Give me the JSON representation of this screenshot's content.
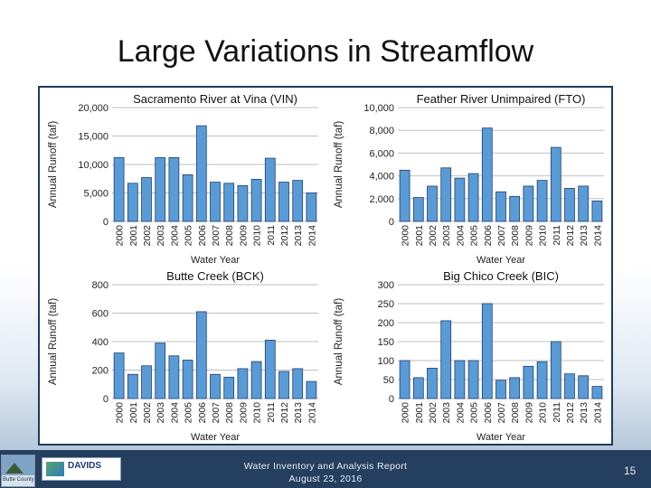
{
  "slide": {
    "title": "Large Variations in Streamflow",
    "footer_line1": "Water Inventory and Analysis Report",
    "footer_line2": "August 23, 2016",
    "page_number": "15",
    "county_logo_text": "Butte County",
    "davids_logo_text": "DAVIDS"
  },
  "colors": {
    "bar_fill": "#5b9bd5",
    "bar_stroke": "#1f3f6e",
    "grid": "#bfbfbf",
    "text": "#222222",
    "footer_bg": "#253f5f"
  },
  "chart_data": [
    {
      "type": "bar",
      "title": "Sacramento River at Vina (VIN)",
      "xlabel": "Water Year",
      "ylabel": "Annual Runoff (taf)",
      "categories": [
        "2000",
        "2001",
        "2002",
        "2003",
        "2004",
        "2005",
        "2006",
        "2007",
        "2008",
        "2009",
        "2010",
        "2011",
        "2012",
        "2013",
        "2014"
      ],
      "values": [
        11200,
        6700,
        7700,
        11200,
        11200,
        8200,
        16800,
        6900,
        6700,
        6300,
        7400,
        11100,
        6900,
        7200,
        5000
      ],
      "ylim": [
        0,
        20000
      ],
      "yticks": [
        0,
        5000,
        10000,
        15000,
        20000
      ],
      "ytick_labels": [
        "0",
        "5,000",
        "10,000",
        "15,000",
        "20,000"
      ],
      "grid": true
    },
    {
      "type": "bar",
      "title": "Feather River Unimpaired (FTO)",
      "xlabel": "Water Year",
      "ylabel": "Annual Runoff (taf)",
      "categories": [
        "2000",
        "2001",
        "2002",
        "2003",
        "2004",
        "2005",
        "2006",
        "2007",
        "2008",
        "2009",
        "2010",
        "2011",
        "2012",
        "2013",
        "2014"
      ],
      "values": [
        4500,
        2100,
        3100,
        4700,
        3800,
        4200,
        8200,
        2600,
        2200,
        3100,
        3600,
        6500,
        2900,
        3100,
        1800
      ],
      "ylim": [
        0,
        10000
      ],
      "yticks": [
        0,
        2000,
        4000,
        6000,
        8000,
        10000
      ],
      "ytick_labels": [
        "0",
        "2,000",
        "4,000",
        "6,000",
        "8,000",
        "10,000"
      ],
      "grid": true
    },
    {
      "type": "bar",
      "title": "Butte Creek (BCK)",
      "xlabel": "Water Year",
      "ylabel": "Annual Runoff (taf)",
      "categories": [
        "2000",
        "2001",
        "2002",
        "2003",
        "2004",
        "2005",
        "2006",
        "2007",
        "2008",
        "2009",
        "2010",
        "2011",
        "2012",
        "2013",
        "2014"
      ],
      "values": [
        320,
        170,
        230,
        390,
        300,
        270,
        610,
        170,
        150,
        210,
        260,
        410,
        190,
        210,
        120
      ],
      "ylim": [
        0,
        800
      ],
      "yticks": [
        0,
        200,
        400,
        600,
        800
      ],
      "ytick_labels": [
        "0",
        "200",
        "400",
        "600",
        "800"
      ],
      "grid": true
    },
    {
      "type": "bar",
      "title": "Big Chico Creek (BIC)",
      "xlabel": "Water Year",
      "ylabel": "Annual Runoff (taf)",
      "categories": [
        "2000",
        "2001",
        "2002",
        "2003",
        "2004",
        "2005",
        "2006",
        "2007",
        "2008",
        "2009",
        "2010",
        "2011",
        "2012",
        "2013",
        "2014"
      ],
      "values": [
        100,
        55,
        80,
        205,
        100,
        100,
        250,
        48,
        55,
        85,
        97,
        150,
        65,
        60,
        32
      ],
      "ylim": [
        0,
        300
      ],
      "yticks": [
        0,
        50,
        100,
        150,
        200,
        250,
        300
      ],
      "ytick_labels": [
        "0",
        "50",
        "100",
        "150",
        "200",
        "250",
        "300"
      ],
      "grid": true
    }
  ]
}
